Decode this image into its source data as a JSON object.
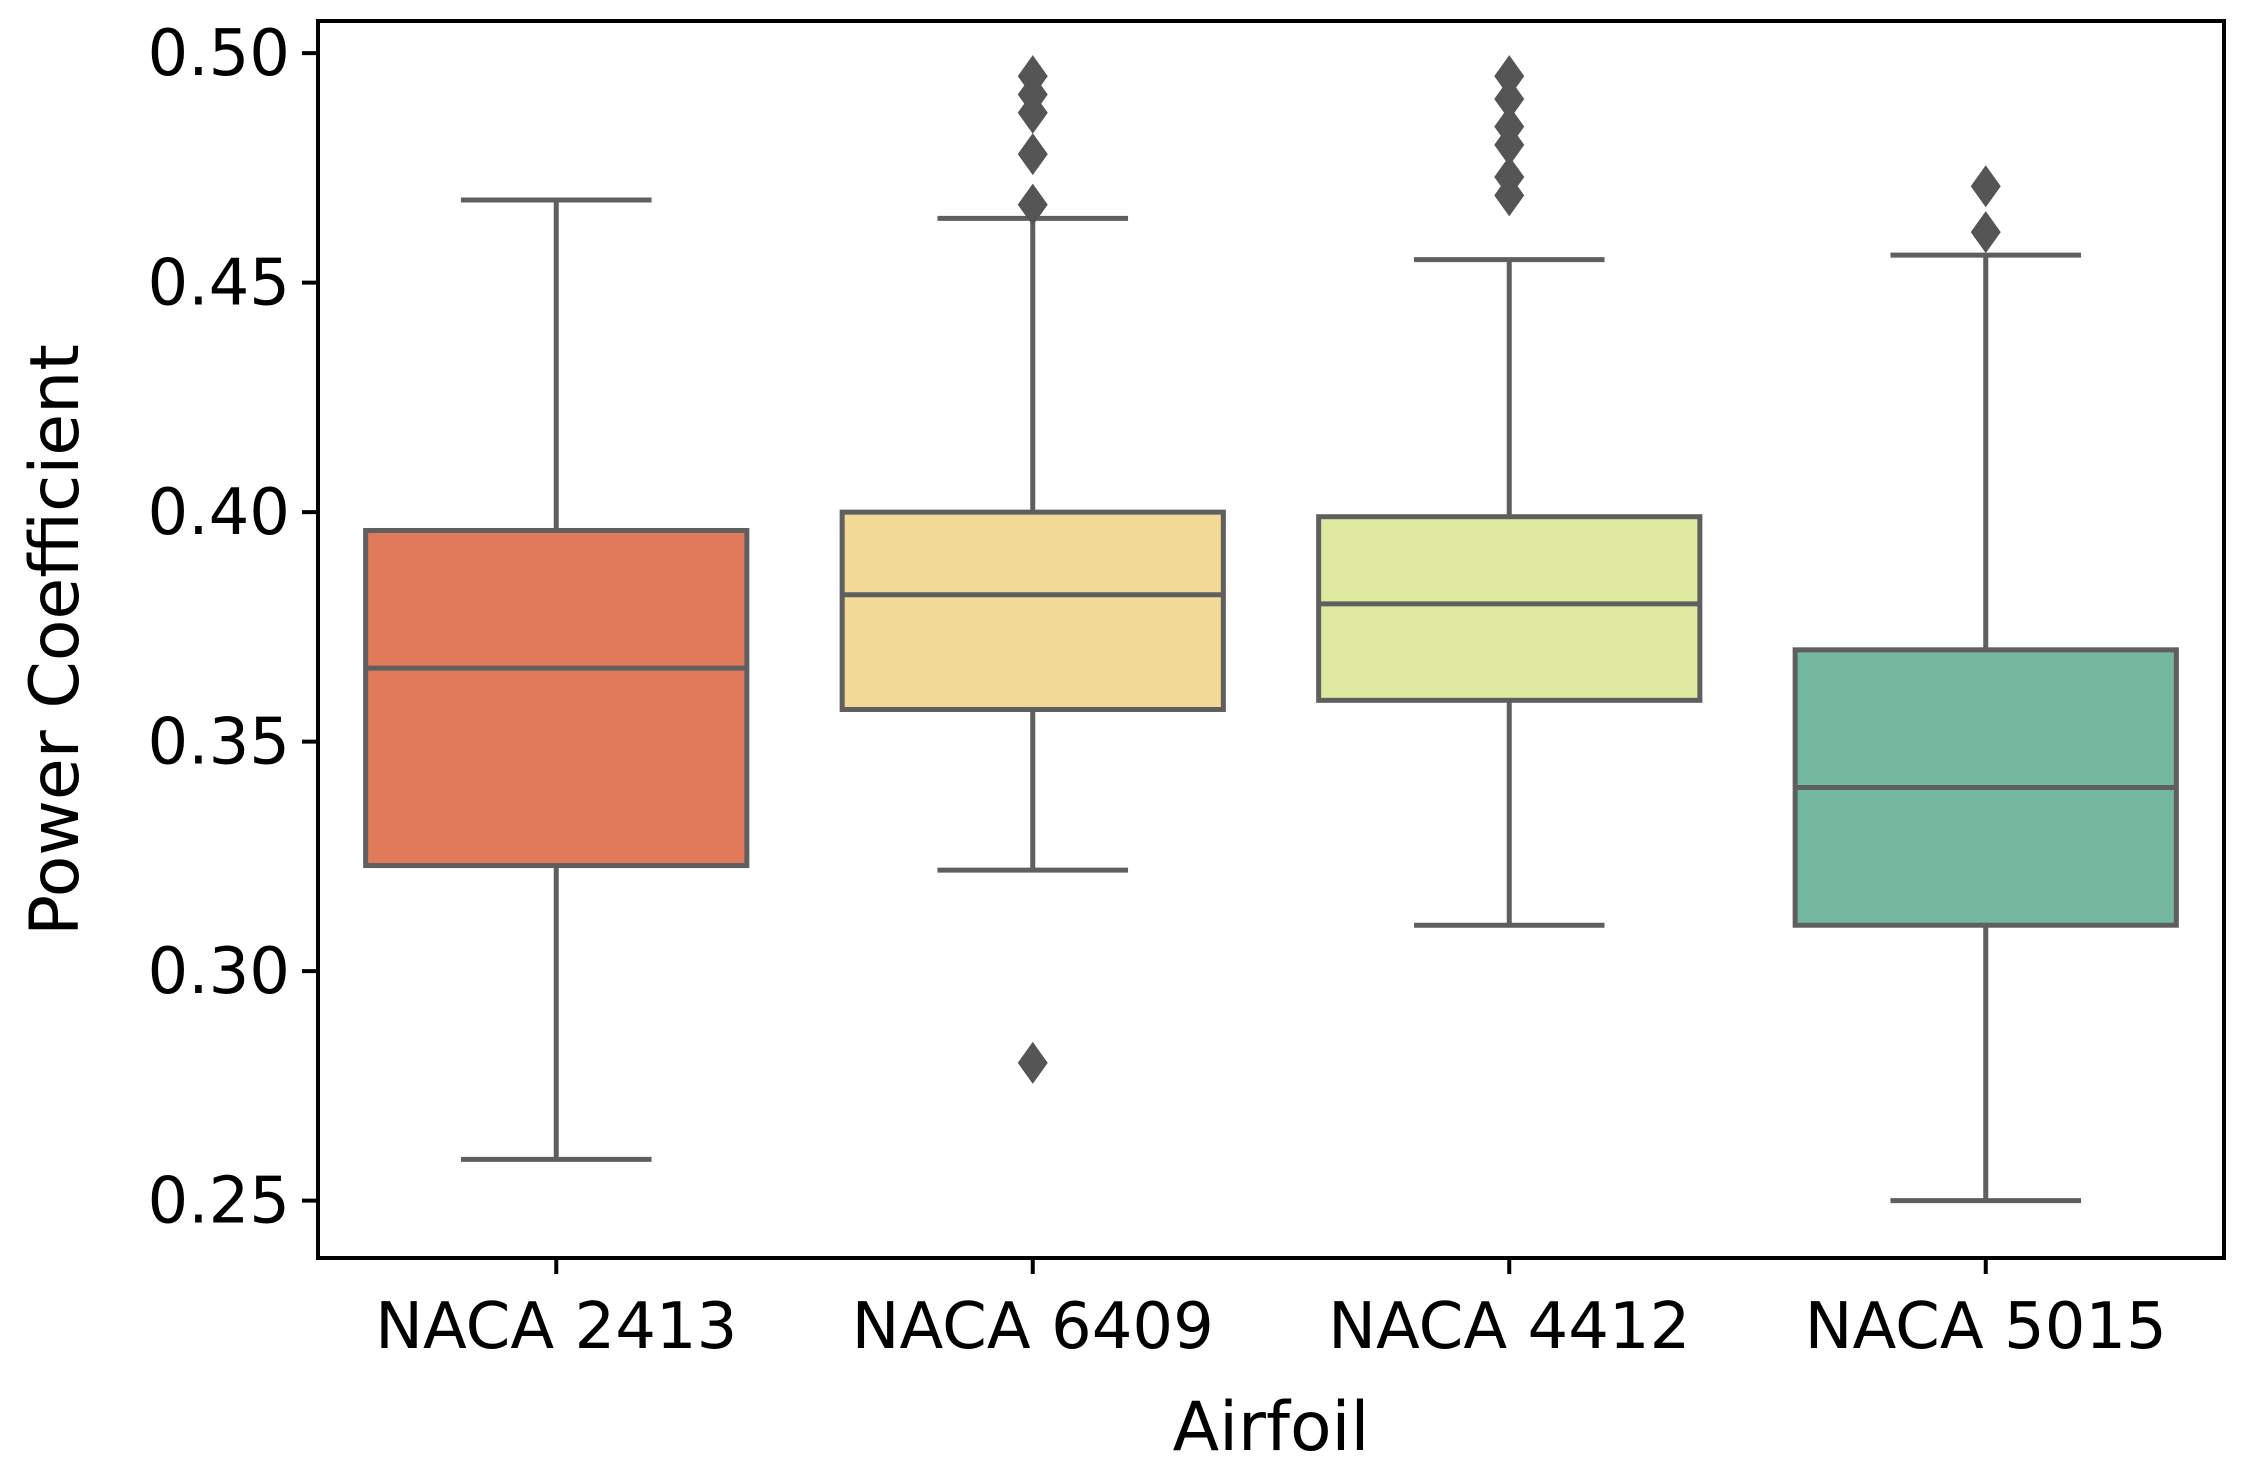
{
  "chart_data": {
    "type": "box",
    "title": "",
    "xlabel": "Airfoil",
    "ylabel": "Power Coefficient",
    "ylim": [
      0.2375,
      0.507
    ],
    "yticks": [
      0.25,
      0.3,
      0.35,
      0.4,
      0.45,
      0.5
    ],
    "ytick_labels": [
      "0.25",
      "0.30",
      "0.35",
      "0.40",
      "0.45",
      "0.50"
    ],
    "grid": false,
    "legend": "none",
    "categories": [
      "NACA 2413",
      "NACA 6409",
      "NACA 4412",
      "NACA 5015"
    ],
    "boxes": [
      {
        "category": "NACA 2413",
        "whisker_low": 0.259,
        "q1": 0.323,
        "median": 0.366,
        "q3": 0.396,
        "whisker_high": 0.468,
        "outliers": [],
        "color": "#e07a5a"
      },
      {
        "category": "NACA 6409",
        "whisker_low": 0.322,
        "q1": 0.357,
        "median": 0.382,
        "q3": 0.4,
        "whisker_high": 0.464,
        "outliers": [
          0.28,
          0.467,
          0.478,
          0.487,
          0.491,
          0.495
        ],
        "color": "#f2d996"
      },
      {
        "category": "NACA 4412",
        "whisker_low": 0.31,
        "q1": 0.359,
        "median": 0.38,
        "q3": 0.399,
        "whisker_high": 0.455,
        "outliers": [
          0.469,
          0.473,
          0.48,
          0.484,
          0.49,
          0.495
        ],
        "color": "#dfeaa0"
      },
      {
        "category": "NACA 5015",
        "whisker_low": 0.25,
        "q1": 0.31,
        "median": 0.34,
        "q3": 0.37,
        "whisker_high": 0.456,
        "outliers": [
          0.461,
          0.471
        ],
        "color": "#75b8a0"
      }
    ],
    "line_color": "#5f5f5f",
    "outlier_color": "#555555"
  }
}
